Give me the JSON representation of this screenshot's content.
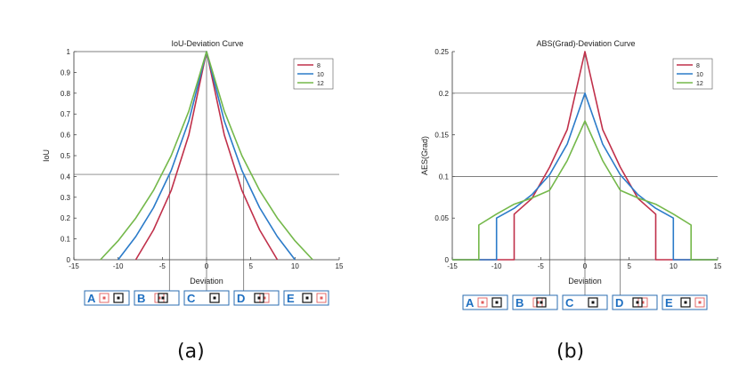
{
  "chart_data": [
    {
      "type": "line",
      "title": "IoU-Deviation Curve",
      "xlabel": "Deviation",
      "ylabel": "IoU",
      "xlim": [
        -15,
        15
      ],
      "ylim": [
        0,
        1
      ],
      "xticks": [
        "-15",
        "-10",
        "-5",
        "0",
        "5",
        "10",
        "15"
      ],
      "yticks": [
        "0",
        "0.1",
        "0.2",
        "0.3",
        "0.4",
        "0.5",
        "0.6",
        "0.7",
        "0.8",
        "0.9",
        "1"
      ],
      "legend": "top-right",
      "series": [
        {
          "name": "8",
          "color": "#c0304a",
          "x": [
            -8,
            -6,
            -4,
            -2,
            0,
            2,
            4,
            6,
            8
          ],
          "values": [
            0,
            0.143,
            0.333,
            0.6,
            1,
            0.6,
            0.333,
            0.143,
            0
          ]
        },
        {
          "name": "10",
          "color": "#2b7bc9",
          "x": [
            -10,
            -8,
            -6,
            -4,
            -2,
            0,
            2,
            4,
            6,
            8,
            10
          ],
          "values": [
            0,
            0.111,
            0.25,
            0.429,
            0.667,
            1,
            0.667,
            0.429,
            0.25,
            0.111,
            0
          ]
        },
        {
          "name": "12",
          "color": "#74b84a",
          "x": [
            -12,
            -10,
            -8,
            -6,
            -4,
            -2,
            0,
            2,
            4,
            6,
            8,
            10,
            12
          ],
          "values": [
            0,
            0.091,
            0.2,
            0.333,
            0.5,
            0.714,
            1,
            0.714,
            0.5,
            0.333,
            0.2,
            0.091,
            0
          ]
        }
      ],
      "reference_lines": {
        "y": 0.41,
        "x_left": -4.2,
        "x_right": 4.2
      },
      "panels": [
        {
          "letter": "A",
          "x": -12
        },
        {
          "letter": "B",
          "x": -4.2
        },
        {
          "letter": "C",
          "x": 0
        },
        {
          "letter": "D",
          "x": 4.2
        },
        {
          "letter": "E",
          "x": 12
        }
      ]
    },
    {
      "type": "line",
      "title": "ABS(Grad)-Deviation Curve",
      "xlabel": "Deviation",
      "ylabel": "AES(Grad)",
      "xlim": [
        -15,
        15
      ],
      "ylim": [
        0,
        0.25
      ],
      "xticks": [
        "-15",
        "-10",
        "-5",
        "0",
        "5",
        "10",
        "15"
      ],
      "yticks": [
        "0",
        "0.05",
        "0.1",
        "0.15",
        "0.2",
        "0.25"
      ],
      "legend": "top-right",
      "series": [
        {
          "name": "8",
          "color": "#c0304a",
          "x": [
            -15,
            -8,
            -8,
            -6,
            -4,
            -2,
            0,
            2,
            4,
            6,
            8,
            8,
            15
          ],
          "values": [
            0,
            0,
            0.0547,
            0.0735,
            0.1111,
            0.1563,
            0.25,
            0.1563,
            0.1111,
            0.0735,
            0.0547,
            0,
            0
          ]
        },
        {
          "name": "10",
          "color": "#2b7bc9",
          "x": [
            -15,
            -10,
            -10,
            -8,
            -6,
            -4,
            -2,
            0,
            2,
            4,
            6,
            8,
            10,
            10,
            15
          ],
          "values": [
            0,
            0,
            0.05,
            0.0617,
            0.0781,
            0.102,
            0.1389,
            0.2,
            0.1389,
            0.102,
            0.0781,
            0.0617,
            0.05,
            0,
            0
          ]
        },
        {
          "name": "12",
          "color": "#74b84a",
          "x": [
            -15,
            -12,
            -12,
            -10,
            -8,
            -6,
            -4,
            -2,
            0,
            2,
            4,
            6,
            8,
            10,
            12,
            12,
            15
          ],
          "values": [
            0,
            0,
            0.0417,
            0.0548,
            0.0667,
            0.0741,
            0.0833,
            0.119,
            0.1667,
            0.119,
            0.0833,
            0.0741,
            0.0667,
            0.0548,
            0.0417,
            0,
            0
          ]
        }
      ],
      "reference_lines": {
        "y_high": 0.2,
        "y_low": 0.1,
        "x_left": -4,
        "x_right": 4
      },
      "panels": [
        {
          "letter": "A",
          "x": -10
        },
        {
          "letter": "B",
          "x": -4
        },
        {
          "letter": "C",
          "x": 0
        },
        {
          "letter": "D",
          "x": 4
        },
        {
          "letter": "E",
          "x": 11
        }
      ]
    }
  ],
  "captions": [
    "(a)",
    "(b)"
  ]
}
